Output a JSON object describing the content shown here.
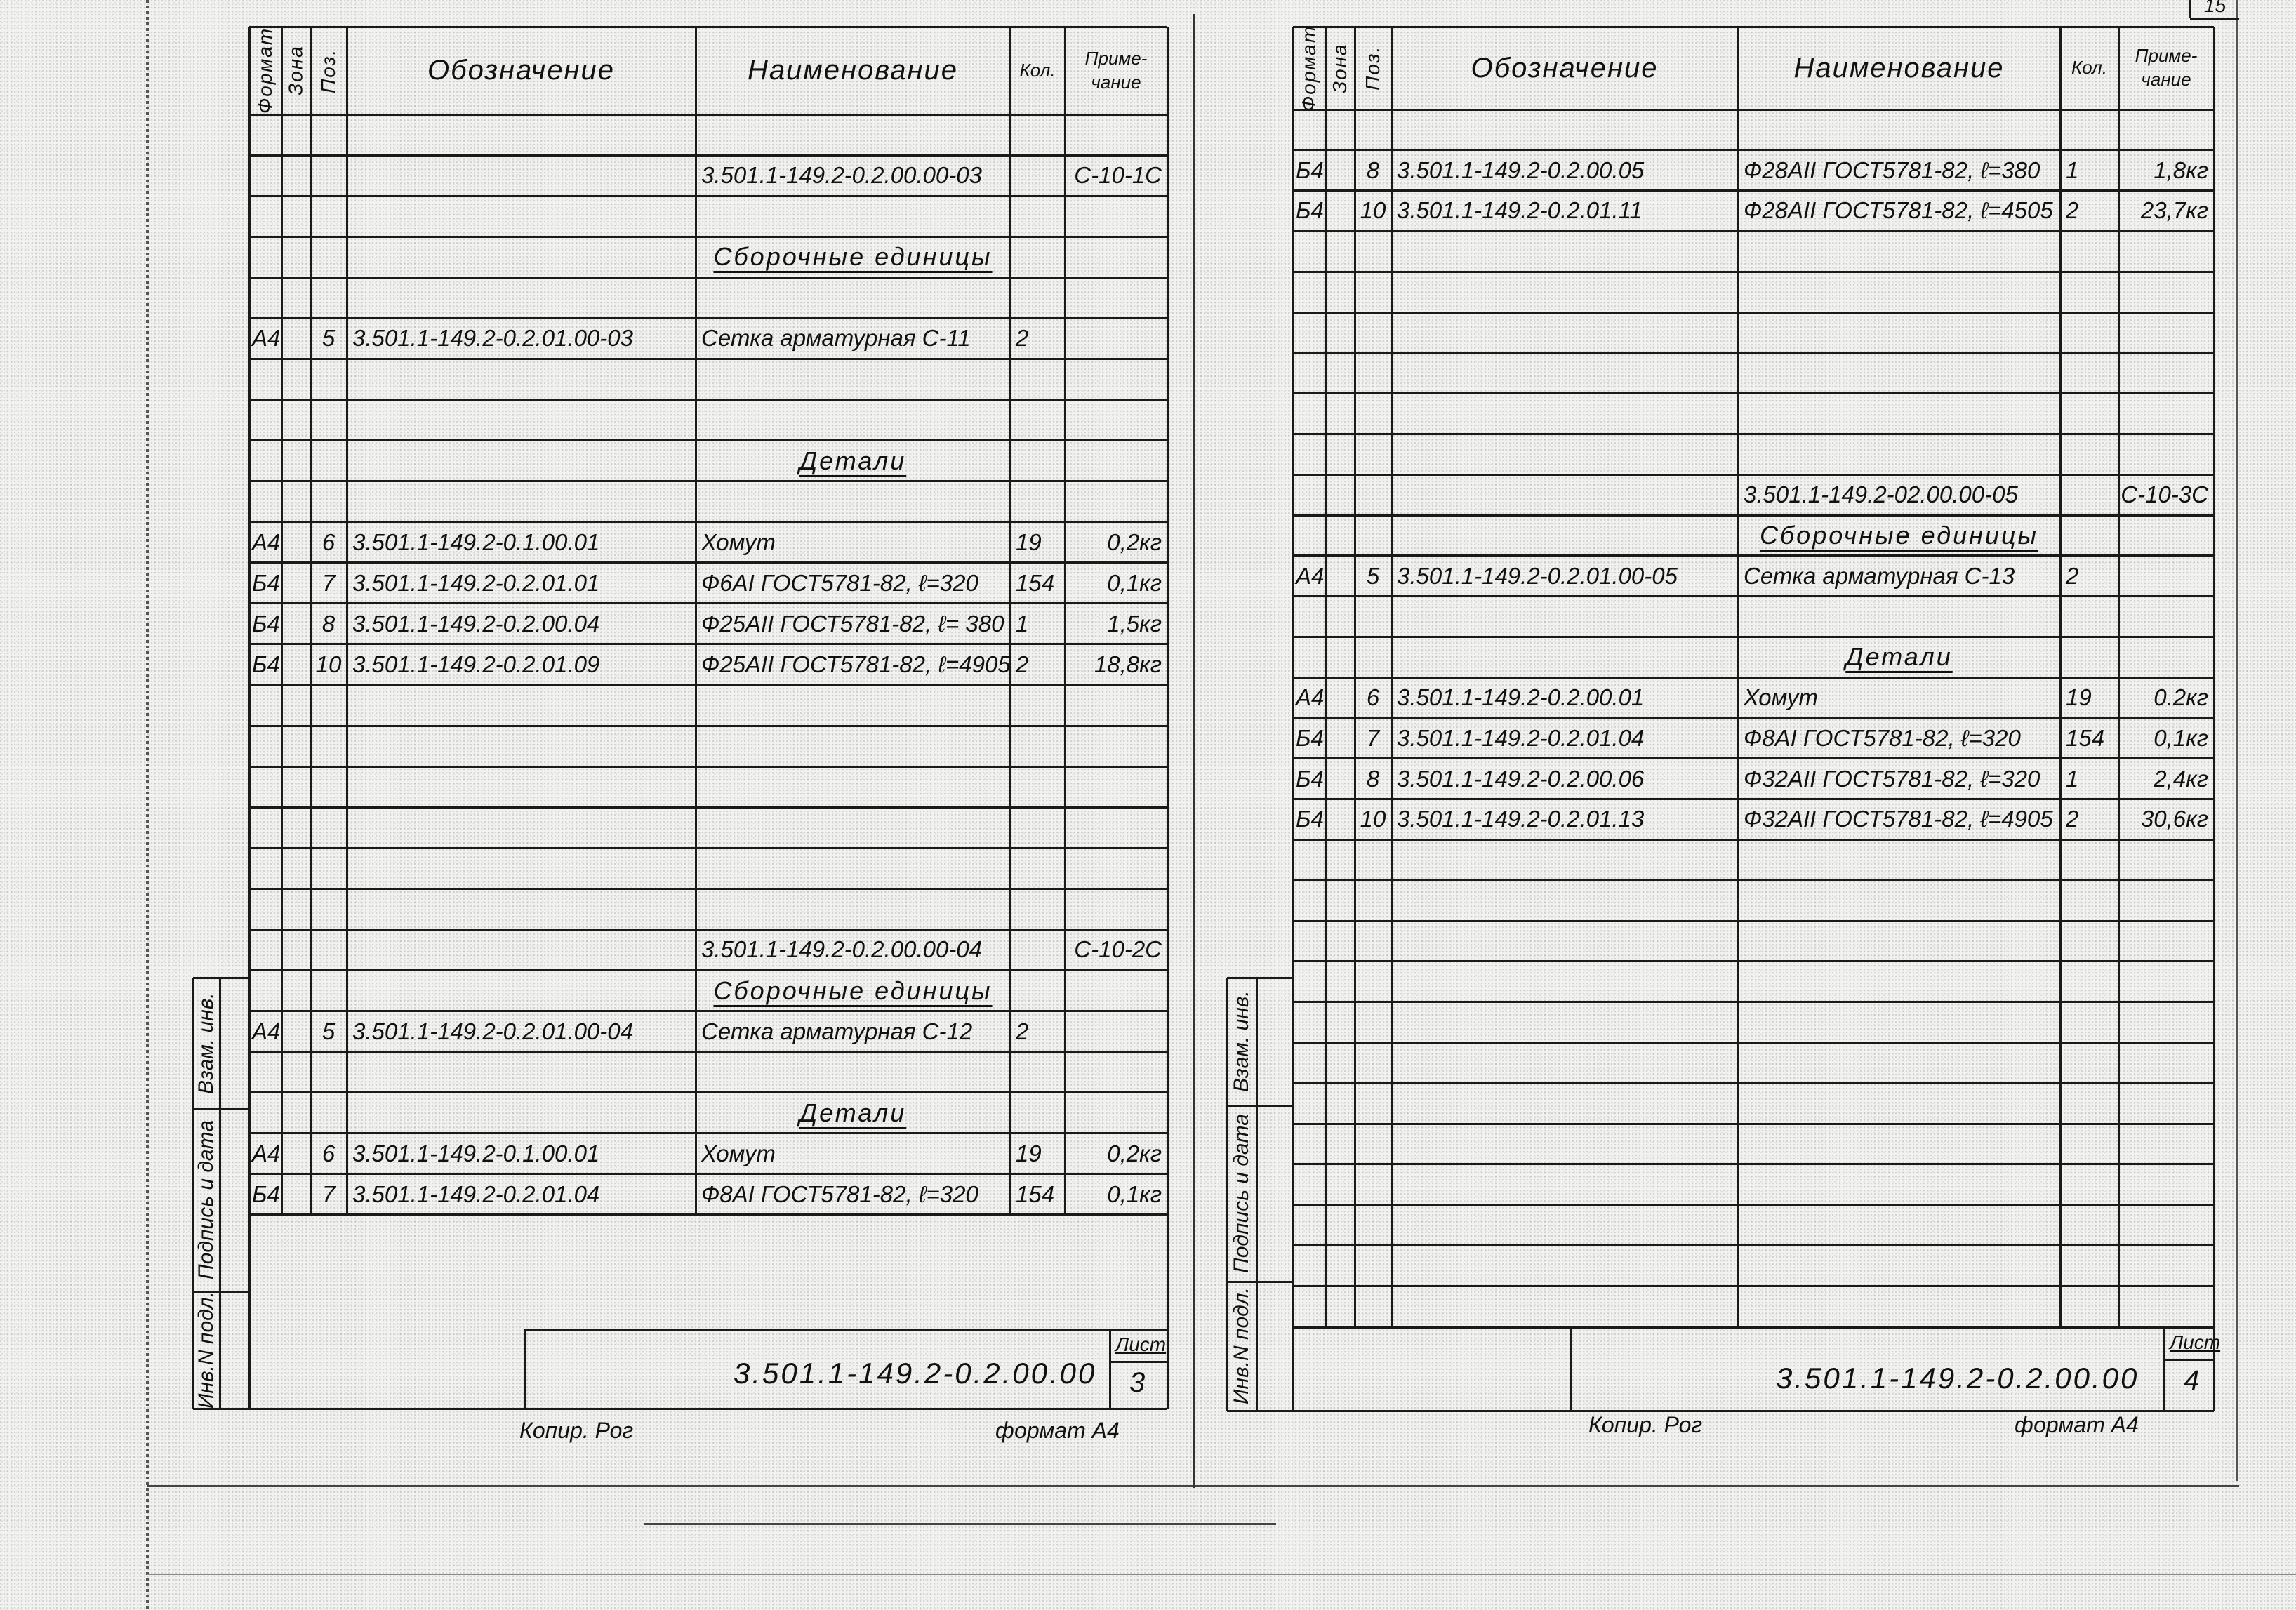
{
  "corner_page_number": "15",
  "header": {
    "format": "Формат",
    "zone": "Зона",
    "pos": "Поз.",
    "designation": "Обозначение",
    "name": "Наименование",
    "qty": "Кол.",
    "note": "Приме-\nчание"
  },
  "stamp": {
    "replace_inv": "Взам. инв.",
    "signature_date": "Подпись и дата",
    "inv_original": "Инв.N подл."
  },
  "sheets": [
    {
      "document_number": "3.501.1-149.2-0.2.00.00",
      "sheet_label": "Лист",
      "sheet_number": "3",
      "copied_by": "Копир. Рог",
      "paper_format": "формат А4",
      "rows": [
        {},
        {
          "name": "3.501.1-149.2-0.2.00.00-03",
          "note": "С-10-1С"
        },
        {},
        {
          "section": "Сборочные единицы"
        },
        {},
        {
          "format": "А4",
          "pos": "5",
          "designation": "3.501.1-149.2-0.2.01.00-03",
          "name": "Сетка арматурная С-11",
          "qty": "2"
        },
        {},
        {},
        {
          "section": "Детали"
        },
        {},
        {
          "format": "А4",
          "pos": "6",
          "designation": "3.501.1-149.2-0.1.00.01",
          "name": "Хомут",
          "qty": "19",
          "note": "0,2кг"
        },
        {
          "format": "Б4",
          "pos": "7",
          "designation": "3.501.1-149.2-0.2.01.01",
          "name": "Ф6АI ГОСТ5781-82, ℓ=320",
          "qty": "154",
          "note": "0,1кг"
        },
        {
          "format": "Б4",
          "pos": "8",
          "designation": "3.501.1-149.2-0.2.00.04",
          "name": "Ф25АII ГОСТ5781-82, ℓ= 380",
          "qty": "1",
          "note": "1,5кг"
        },
        {
          "format": "Б4",
          "pos": "10",
          "designation": "3.501.1-149.2-0.2.01.09",
          "name": "Ф25АII ГОСТ5781-82, ℓ=4905",
          "qty": "2",
          "note": "18,8кг"
        },
        {},
        {},
        {},
        {},
        {},
        {},
        {
          "name": "3.501.1-149.2-0.2.00.00-04",
          "note": "С-10-2С"
        },
        {
          "section": "Сборочные единицы"
        },
        {
          "format": "А4",
          "pos": "5",
          "designation": "3.501.1-149.2-0.2.01.00-04",
          "name": "Сетка арматурная С-12",
          "qty": "2"
        },
        {},
        {
          "section": "Детали"
        },
        {
          "format": "А4",
          "pos": "6",
          "designation": "3.501.1-149.2-0.1.00.01",
          "name": "Хомут",
          "qty": "19",
          "note": "0,2кг"
        },
        {
          "format": "Б4",
          "pos": "7",
          "designation": "3.501.1-149.2-0.2.01.04",
          "name": "Ф8АI ГОСТ5781-82, ℓ=320",
          "qty": "154",
          "note": "0,1кг"
        }
      ]
    },
    {
      "document_number": "3.501.1-149.2-0.2.00.00",
      "sheet_label": "Лист",
      "sheet_number": "4",
      "copied_by": "Копир. Рог",
      "paper_format": "формат А4",
      "rows": [
        {},
        {
          "format": "Б4",
          "pos": "8",
          "designation": "3.501.1-149.2-0.2.00.05",
          "name": "Ф28АII ГОСТ5781-82, ℓ=380",
          "qty": "1",
          "note": "1,8кг"
        },
        {
          "format": "Б4",
          "pos": "10",
          "designation": "3.501.1-149.2-0.2.01.11",
          "name": "Ф28АII ГОСТ5781-82, ℓ=4505",
          "qty": "2",
          "note": "23,7кг"
        },
        {},
        {},
        {},
        {},
        {},
        {},
        {
          "name": "3.501.1-149.2-02.00.00-05",
          "note": "С-10-3С"
        },
        {
          "section": "Сборочные единицы"
        },
        {
          "format": "А4",
          "pos": "5",
          "designation": "3.501.1-149.2-0.2.01.00-05",
          "name": "Сетка арматурная С-13",
          "qty": "2"
        },
        {},
        {
          "section": "Детали"
        },
        {
          "format": "А4",
          "pos": "6",
          "designation": "3.501.1-149.2-0.2.00.01",
          "name": "Хомут",
          "qty": "19",
          "note": "0.2кг"
        },
        {
          "format": "Б4",
          "pos": "7",
          "designation": "3.501.1-149.2-0.2.01.04",
          "name": "Ф8АI ГОСТ5781-82, ℓ=320",
          "qty": "154",
          "note": "0,1кг"
        },
        {
          "format": "Б4",
          "pos": "8",
          "designation": "3.501.1-149.2-0.2.00.06",
          "name": "Ф32АII ГОСТ5781-82, ℓ=320",
          "qty": "1",
          "note": "2,4кг"
        },
        {
          "format": "Б4",
          "pos": "10",
          "designation": "3.501.1-149.2-0.2.01.13",
          "name": "Ф32АII ГОСТ5781-82, ℓ=4905",
          "qty": "2",
          "note": "30,6кг"
        },
        {},
        {},
        {},
        {},
        {},
        {},
        {},
        {},
        {},
        {},
        {},
        {}
      ]
    }
  ]
}
